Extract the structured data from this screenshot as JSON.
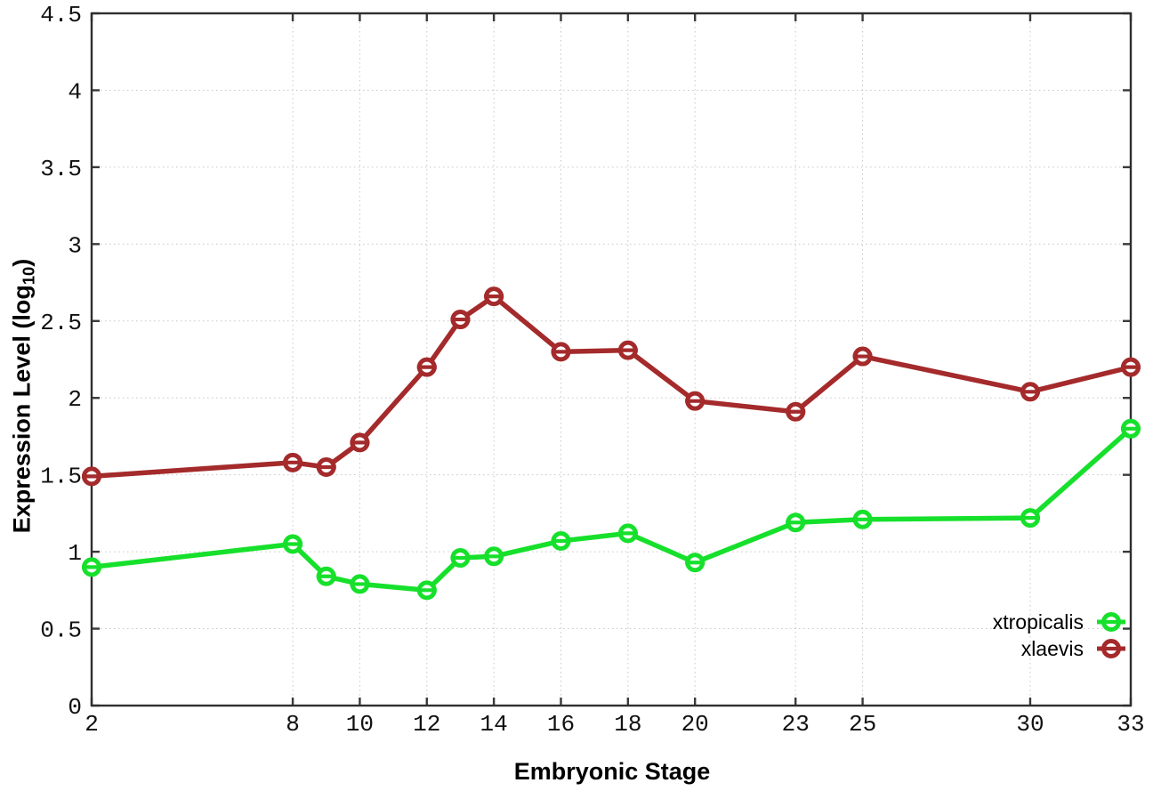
{
  "chart_data": {
    "type": "line",
    "title": "",
    "xlabel": "Embryonic Stage",
    "ylabel": {
      "prefix": "Expression Level (log",
      "sub": "10",
      "suffix": ")"
    },
    "xlim": [
      2,
      33
    ],
    "ylim": [
      0,
      4.5
    ],
    "x_ticks": [
      2,
      8,
      10,
      12,
      14,
      16,
      18,
      20,
      23,
      25,
      30,
      33
    ],
    "y_ticks": [
      0,
      0.5,
      1,
      1.5,
      2,
      2.5,
      3,
      3.5,
      4,
      4.5
    ],
    "grid": true,
    "legend_position": "bottom-right",
    "marker": "open-circle-with-horizontal-bar",
    "x": [
      2,
      8,
      9,
      10,
      12,
      13,
      14,
      16,
      18,
      20,
      23,
      25,
      30,
      33
    ],
    "series": [
      {
        "name": "xtropicalis",
        "color": "#16e02b",
        "values": [
          0.9,
          1.05,
          0.84,
          0.79,
          0.75,
          0.96,
          0.97,
          1.07,
          1.12,
          0.93,
          1.19,
          1.21,
          1.22,
          1.8
        ]
      },
      {
        "name": "xlaevis",
        "color": "#a42a2b",
        "values": [
          1.49,
          1.58,
          1.55,
          1.71,
          2.2,
          2.51,
          2.66,
          2.3,
          2.31,
          1.98,
          1.91,
          2.27,
          2.04,
          2.2
        ]
      }
    ],
    "colors": {
      "plot_border": "#2e2e2e",
      "grid_line": "#c8c8c8",
      "tick_mark": "#3a3a3a",
      "tick_text": "#111111",
      "legend_text": "#000000",
      "background": "#ffffff"
    }
  }
}
